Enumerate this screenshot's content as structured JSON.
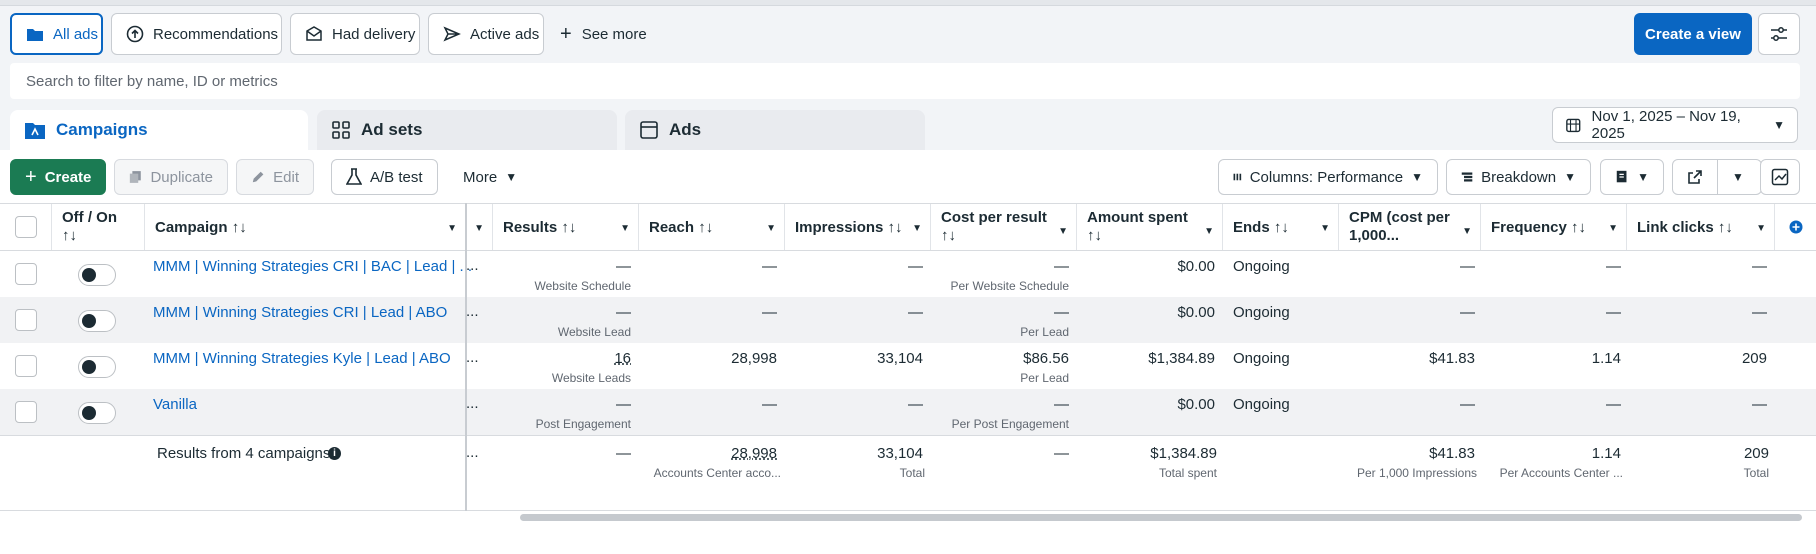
{
  "filters": {
    "all_ads": "All ads",
    "recommendations": "Recommendations",
    "had_delivery": "Had delivery",
    "active_ads": "Active ads",
    "see_more": "See more"
  },
  "create_view": "Create a view",
  "search": {
    "placeholder": "Search to filter by name, ID or metrics"
  },
  "tabs": {
    "campaigns": "Campaigns",
    "ad_sets": "Ad sets",
    "ads": "Ads"
  },
  "date_range": "Nov 1, 2025 – Nov 19, 2025",
  "toolbar": {
    "create": "Create",
    "duplicate": "Duplicate",
    "edit": "Edit",
    "ab_test": "A/B test",
    "more": "More",
    "columns": "Columns: Performance",
    "breakdown": "Breakdown"
  },
  "columns": {
    "offon": "Off / On",
    "campaign": "Campaign",
    "results": "Results",
    "reach": "Reach",
    "impressions": "Impressions",
    "cpr": "Cost per result",
    "amount": "Amount spent",
    "ends": "Ends",
    "cpm": "CPM (cost per 1,000...",
    "frequency": "Frequency",
    "link_clicks": "Link clicks"
  },
  "rows": [
    {
      "name": "MMM | Winning Strategies CRI | BAC | Lead | ...",
      "results": "—",
      "results_sub": "Website Schedule",
      "reach": "—",
      "impressions": "—",
      "cpr": "—",
      "cpr_sub": "Per Website Schedule",
      "amount": "$0.00",
      "ends": "Ongoing",
      "cpm": "—",
      "frequency": "—",
      "link_clicks": "—"
    },
    {
      "name": "MMM | Winning Strategies CRI | Lead | ABO",
      "results": "—",
      "results_sub": "Website Lead",
      "reach": "—",
      "impressions": "—",
      "cpr": "—",
      "cpr_sub": "Per Lead",
      "amount": "$0.00",
      "ends": "Ongoing",
      "cpm": "—",
      "frequency": "—",
      "link_clicks": "—"
    },
    {
      "name": "MMM | Winning Strategies Kyle | Lead | ABO",
      "results": "16",
      "results_sub": "Website Leads",
      "reach": "28,998",
      "impressions": "33,104",
      "cpr": "$86.56",
      "cpr_sub": "Per Lead",
      "amount": "$1,384.89",
      "ends": "Ongoing",
      "cpm": "$41.83",
      "frequency": "1.14",
      "link_clicks": "209"
    },
    {
      "name": "Vanilla",
      "results": "—",
      "results_sub": "Post Engagement",
      "reach": "—",
      "impressions": "—",
      "cpr": "—",
      "cpr_sub": "Per Post Engagement",
      "amount": "$0.00",
      "ends": "Ongoing",
      "cpm": "—",
      "frequency": "—",
      "link_clicks": "—"
    }
  ],
  "totals": {
    "label": "Results from 4 campaigns",
    "results": "—",
    "reach": "28,998",
    "reach_sub": "Accounts Center acco...",
    "impressions": "33,104",
    "impressions_sub": "Total",
    "cpr": "—",
    "amount": "$1,384.89",
    "amount_sub": "Total spent",
    "cpm": "$41.83",
    "cpm_sub": "Per 1,000 Impressions",
    "frequency": "1.14",
    "frequency_sub": "Per Accounts Center ...",
    "link_clicks": "209",
    "link_clicks_sub": "Total"
  },
  "ellipsis": "...",
  "colors": {
    "accent": "#0a66c2",
    "create_green": "#1b7b53"
  }
}
